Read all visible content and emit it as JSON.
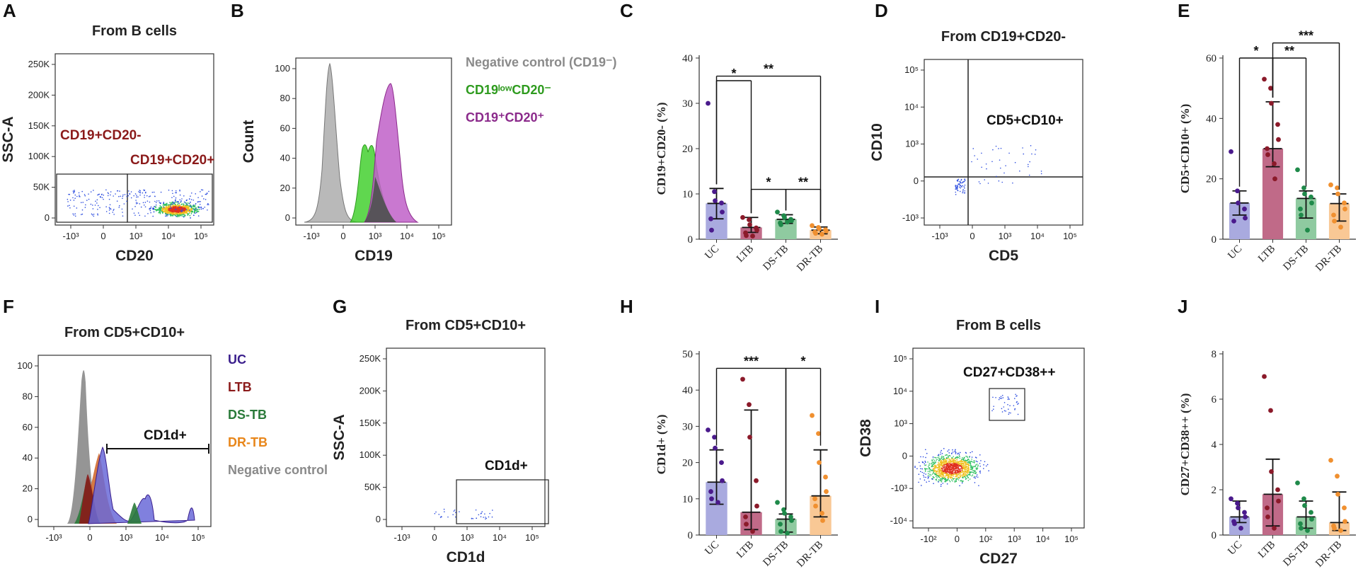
{
  "panels": {
    "A": {
      "letter": "A",
      "title": "From B cells",
      "xlabel": "CD20",
      "ylabel": "SSC-A",
      "yticks": [
        "0",
        "50K",
        "100K",
        "150K",
        "200K",
        "250K"
      ],
      "xticks": [
        "-10³",
        "0",
        "10³",
        "10⁴",
        "10⁵"
      ],
      "gates": [
        "CD19+CD20-",
        "CD19+CD20+"
      ],
      "gate_color": "#8b1a1a"
    },
    "B": {
      "letter": "B",
      "xlabel": "CD19",
      "ylabel": "Count",
      "yticks": [
        "0",
        "20",
        "40",
        "60",
        "80",
        "100"
      ],
      "xticks": [
        "-10³",
        "0",
        "10³",
        "10⁴",
        "10⁵"
      ],
      "legend": [
        {
          "label": "Negative control (CD19⁻)",
          "color": "#8a8a8a"
        },
        {
          "label": "CD19ˡᵒʷCD20⁻",
          "color": "#2e9b1e"
        },
        {
          "label": "CD19⁺CD20⁺",
          "color": "#8b2a8b"
        }
      ]
    },
    "D": {
      "letter": "D",
      "title": "From CD19+CD20-",
      "xlabel": "CD5",
      "ylabel": "CD10",
      "yticks": [
        "-10³",
        "0",
        "10³",
        "10⁴",
        "10⁵"
      ],
      "xticks": [
        "-10³",
        "0",
        "10³",
        "10⁴",
        "10⁵"
      ],
      "gate": "CD5+CD10+"
    },
    "F": {
      "letter": "F",
      "title": "From CD5+CD10+",
      "xlabel": "",
      "ylabel": "Count",
      "yticks": [
        "0",
        "20",
        "40",
        "60",
        "80",
        "100"
      ],
      "xticks": [
        "-10³",
        "0",
        "10³",
        "10⁴",
        "10⁵"
      ],
      "gate": "CD1d+",
      "legend": [
        {
          "label": "UC",
          "color": "#3a1e8c"
        },
        {
          "label": "LTB",
          "color": "#8b1a1a"
        },
        {
          "label": "DS-TB",
          "color": "#2a7a3a"
        },
        {
          "label": "DR-TB",
          "color": "#e8861a"
        },
        {
          "label": "Negative control",
          "color": "#8a8a8a"
        }
      ]
    },
    "G": {
      "letter": "G",
      "title": "From CD5+CD10+",
      "xlabel": "CD1d",
      "ylabel": "SSC-A",
      "yticks": [
        "0",
        "50K",
        "100K",
        "150K",
        "200K",
        "250K"
      ],
      "xticks": [
        "-10³",
        "0",
        "10³",
        "10⁴",
        "10⁵"
      ],
      "gate": "CD1d+"
    },
    "I": {
      "letter": "I",
      "title": "From B cells",
      "xlabel": "CD27",
      "ylabel": "CD38",
      "yticks": [
        "-10⁴",
        "-10³",
        "0",
        "10³",
        "10⁴",
        "10⁵"
      ],
      "xticks": [
        "-10²",
        "0",
        "10²",
        "10³",
        "10⁴",
        "10⁵"
      ],
      "gate": "CD27+CD38++"
    }
  },
  "chart_data": [
    {
      "panel": "C",
      "letter": "C",
      "type": "bar",
      "ylabel": "CD19+CD20- (%)",
      "categories": [
        "UC",
        "LTB",
        "DS-TB",
        "DR-TB"
      ],
      "colors": [
        "#a9aadf",
        "#c06a88",
        "#8fcaa0",
        "#f9c895"
      ],
      "dot_colors": [
        "#4a1a8c",
        "#8b1a2a",
        "#1f8a4a",
        "#f09030"
      ],
      "values": [
        7.9,
        2.6,
        4.4,
        2.0
      ],
      "err_low": [
        4.5,
        1.5,
        3.5,
        1.2
      ],
      "err_high": [
        11.2,
        4.8,
        5.4,
        2.7
      ],
      "points": [
        [
          30,
          10.5,
          8.5,
          8,
          6,
          4.5,
          2
        ],
        [
          4.8,
          4.3,
          3.2,
          2.5,
          2,
          1.4,
          0.8,
          0.7
        ],
        [
          6,
          5.2,
          4.8,
          4.4,
          4.1,
          3.6,
          3.2,
          3.8
        ],
        [
          3,
          2.6,
          2.3,
          2.1,
          1.8,
          1.6,
          1.3,
          1.1
        ]
      ],
      "ylim": [
        0,
        40
      ],
      "yticks": [
        0,
        10,
        20,
        30,
        40
      ],
      "significance": [
        {
          "from": 0,
          "to": 1,
          "label": "*",
          "y": 35
        },
        {
          "from": 0,
          "to": 3,
          "label": "**",
          "y": 36
        },
        {
          "from": 1,
          "to": 2,
          "label": "*",
          "y": 11
        },
        {
          "from": 2,
          "to": 3,
          "label": "**",
          "y": 11
        }
      ]
    },
    {
      "panel": "E",
      "letter": "E",
      "type": "bar",
      "ylabel": "CD5+CD10+ (%)",
      "categories": [
        "UC",
        "LTB",
        "DS-TB",
        "DR-TB"
      ],
      "colors": [
        "#a9aadf",
        "#c06a88",
        "#8fcaa0",
        "#f9c895"
      ],
      "dot_colors": [
        "#4a1a8c",
        "#8b1a2a",
        "#1f8a4a",
        "#f09030"
      ],
      "values": [
        12,
        30,
        13.5,
        11.8
      ],
      "err_low": [
        8,
        24,
        7,
        6
      ],
      "err_high": [
        16,
        45.5,
        16,
        15
      ],
      "points": [
        [
          29,
          16,
          12,
          10,
          7,
          6
        ],
        [
          53,
          50,
          45,
          38,
          33,
          30,
          28,
          25,
          20
        ],
        [
          23,
          17,
          15,
          14,
          12,
          10,
          8,
          3
        ],
        [
          18,
          17,
          15,
          12,
          10,
          8,
          6,
          4
        ]
      ],
      "ylim": [
        0,
        60
      ],
      "yticks": [
        0,
        20,
        40,
        60
      ],
      "significance": [
        {
          "from": 0,
          "to": 1,
          "label": "*",
          "y": 60
        },
        {
          "from": 1,
          "to": 3,
          "label": "***",
          "y": 65
        },
        {
          "from": 1,
          "to": 2,
          "label": "**",
          "y": 60
        }
      ]
    },
    {
      "panel": "H",
      "letter": "H",
      "type": "bar",
      "ylabel": "CD1d+ (%)",
      "categories": [
        "UC",
        "LTB",
        "DS-TB",
        "DR-TB"
      ],
      "colors": [
        "#a9aadf",
        "#c06a88",
        "#8fcaa0",
        "#f9c895"
      ],
      "dot_colors": [
        "#4a1a8c",
        "#8b1a2a",
        "#1f8a4a",
        "#f09030"
      ],
      "values": [
        14.6,
        6.3,
        4.4,
        10.8
      ],
      "err_low": [
        8.5,
        1.5,
        0.8,
        5
      ],
      "err_high": [
        23.5,
        34.5,
        5.8,
        23.5
      ],
      "points": [
        [
          29,
          27,
          24,
          20,
          15,
          12,
          10,
          9
        ],
        [
          43,
          36,
          27,
          15,
          8,
          5,
          3,
          1
        ],
        [
          9,
          7,
          6,
          5,
          4,
          3,
          1,
          0.5
        ],
        [
          33,
          28,
          20,
          16,
          12,
          10,
          8,
          6,
          4
        ]
      ],
      "ylim": [
        0,
        50
      ],
      "yticks": [
        0,
        10,
        20,
        30,
        40,
        50
      ],
      "significance": [
        {
          "from": 0,
          "to": 2,
          "label": "***",
          "y": 46
        },
        {
          "from": 2,
          "to": 3,
          "label": "*",
          "y": 46
        }
      ]
    },
    {
      "panel": "J",
      "letter": "J",
      "type": "bar",
      "ylabel": "CD27+CD38++ (%)",
      "categories": [
        "UC",
        "LTB",
        "DS-TB",
        "DR-TB"
      ],
      "colors": [
        "#a9aadf",
        "#c06a88",
        "#8fcaa0",
        "#f9c895"
      ],
      "dot_colors": [
        "#4a1a8c",
        "#8b1a2a",
        "#1f8a4a",
        "#f09030"
      ],
      "values": [
        0.8,
        1.8,
        0.8,
        0.55
      ],
      "err_low": [
        0.55,
        0.4,
        0.3,
        0.2
      ],
      "err_high": [
        1.5,
        3.35,
        1.5,
        1.9
      ],
      "points": [
        [
          1.6,
          1.4,
          1.2,
          1.0,
          0.8,
          0.6,
          0.5,
          0.3
        ],
        [
          7,
          5.5,
          2.8,
          2,
          1.5,
          1.2,
          0.8,
          0.3
        ],
        [
          2.3,
          1.6,
          1.3,
          1.0,
          0.7,
          0.5,
          0.3,
          0.2
        ],
        [
          3.3,
          2.6,
          1.8,
          1.2,
          0.6,
          0.4,
          0.3,
          0.2
        ]
      ],
      "ylim": [
        0,
        8
      ],
      "yticks": [
        0,
        2,
        4,
        6,
        8
      ],
      "significance": []
    }
  ]
}
